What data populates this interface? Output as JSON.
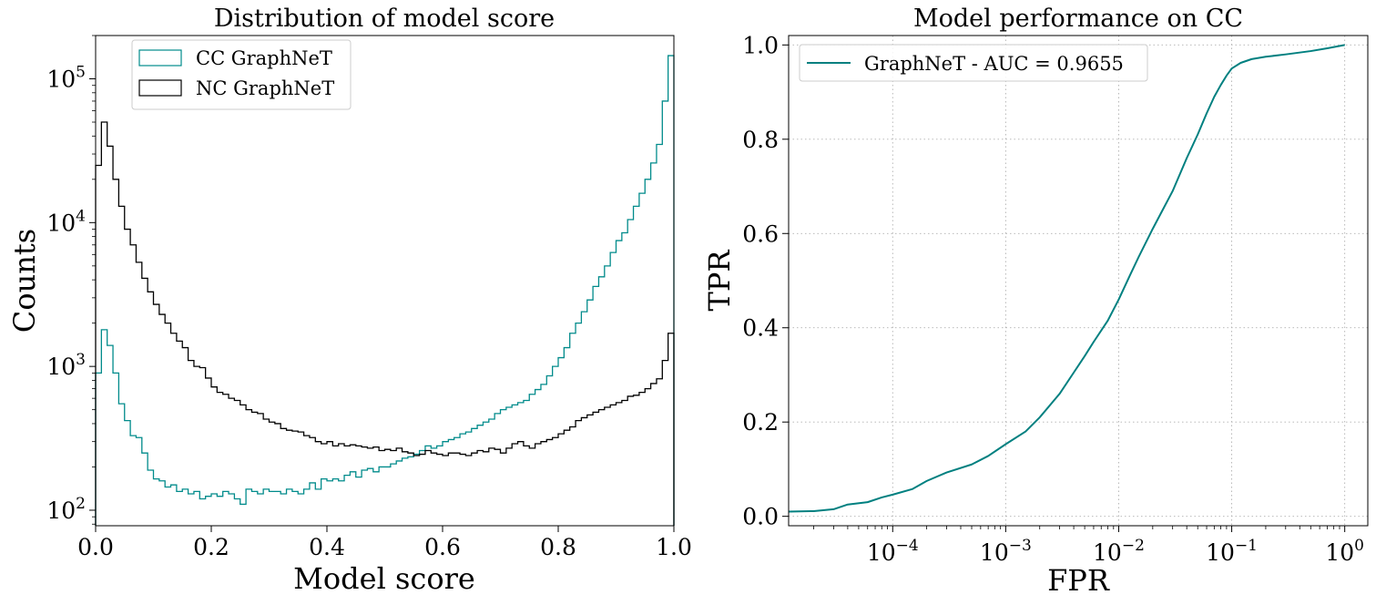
{
  "chart_data": [
    {
      "type": "histogram",
      "title": "Distribution of model score",
      "xlabel": "Model score",
      "ylabel": "Counts",
      "xlim": [
        0.0,
        1.0
      ],
      "ylim": [
        78,
        200000
      ],
      "yscale": "log",
      "grid": false,
      "legend_location": "upper-left",
      "x_ticks": [
        0.0,
        0.2,
        0.4,
        0.6,
        0.8,
        1.0
      ],
      "x_tick_labels": [
        "0.0",
        "0.2",
        "0.4",
        "0.6",
        "0.8",
        "1.0"
      ],
      "y_ticks": [
        {
          "value": 100,
          "base": "10",
          "exp": "2"
        },
        {
          "value": 1000,
          "base": "10",
          "exp": "3"
        },
        {
          "value": 10000,
          "base": "10",
          "exp": "4"
        },
        {
          "value": 100000,
          "base": "10",
          "exp": "5"
        }
      ],
      "bins": 100,
      "series": [
        {
          "name": "CC GraphNeT",
          "color": "#008b8b",
          "values": [
            900,
            1800,
            1400,
            900,
            550,
            420,
            330,
            320,
            250,
            190,
            165,
            160,
            145,
            150,
            135,
            140,
            130,
            135,
            120,
            125,
            130,
            125,
            135,
            130,
            120,
            110,
            140,
            135,
            130,
            140,
            135,
            135,
            130,
            140,
            135,
            130,
            140,
            155,
            140,
            165,
            160,
            165,
            160,
            175,
            185,
            170,
            190,
            195,
            185,
            200,
            200,
            210,
            220,
            230,
            235,
            245,
            260,
            280,
            270,
            280,
            300,
            310,
            320,
            340,
            350,
            370,
            390,
            410,
            430,
            470,
            500,
            520,
            540,
            560,
            580,
            640,
            690,
            750,
            860,
            1000,
            1150,
            1350,
            1700,
            2000,
            2400,
            2900,
            3600,
            4200,
            5000,
            6200,
            7500,
            8500,
            10500,
            13000,
            16000,
            20000,
            26000,
            35000,
            70000,
            145000
          ]
        },
        {
          "name": "NC GraphNeT",
          "color": "#000000",
          "values": [
            25000,
            50000,
            34000,
            20000,
            13000,
            9000,
            7000,
            5300,
            4100,
            3300,
            2700,
            2300,
            2000,
            1700,
            1500,
            1350,
            1100,
            1000,
            980,
            830,
            720,
            660,
            640,
            600,
            580,
            540,
            500,
            480,
            470,
            430,
            410,
            400,
            370,
            360,
            355,
            350,
            330,
            320,
            300,
            290,
            300,
            280,
            290,
            280,
            285,
            280,
            275,
            270,
            275,
            260,
            265,
            260,
            270,
            255,
            250,
            240,
            245,
            260,
            250,
            245,
            240,
            250,
            250,
            245,
            240,
            250,
            260,
            255,
            270,
            265,
            250,
            270,
            290,
            300,
            280,
            270,
            290,
            300,
            310,
            320,
            340,
            360,
            380,
            420,
            440,
            460,
            480,
            500,
            520,
            540,
            560,
            580,
            620,
            630,
            660,
            700,
            760,
            820,
            1100,
            1700
          ]
        }
      ]
    },
    {
      "type": "line",
      "title": "Model performance on CC",
      "xlabel": "FPR",
      "ylabel": "TPR",
      "xscale": "log",
      "xlim": [
        1.2e-05,
        1.6
      ],
      "ylim": [
        -0.02,
        1.02
      ],
      "grid": true,
      "legend_location": "upper-left",
      "x_ticks": [
        {
          "value": 0.0001,
          "base": "10",
          "exp": "−4"
        },
        {
          "value": 0.001,
          "base": "10",
          "exp": "−3"
        },
        {
          "value": 0.01,
          "base": "10",
          "exp": "−2"
        },
        {
          "value": 0.1,
          "base": "10",
          "exp": "−1"
        },
        {
          "value": 1,
          "base": "10",
          "exp": "0"
        }
      ],
      "y_ticks": [
        0.0,
        0.2,
        0.4,
        0.6,
        0.8,
        1.0
      ],
      "y_tick_labels": [
        "0.0",
        "0.2",
        "0.4",
        "0.6",
        "0.8",
        "1.0"
      ],
      "series": [
        {
          "name": "GraphNeT - AUC = 0.9655",
          "color": "#008080",
          "x": [
            1.2e-05,
            2e-05,
            3e-05,
            4e-05,
            6e-05,
            8e-05,
            0.0001,
            0.00015,
            0.0002,
            0.0003,
            0.0005,
            0.0007,
            0.001,
            0.0015,
            0.002,
            0.003,
            0.004,
            0.005,
            0.006,
            0.008,
            0.01,
            0.0125,
            0.015,
            0.02,
            0.03,
            0.04,
            0.05,
            0.06,
            0.07,
            0.08,
            0.09,
            0.1,
            0.12,
            0.15,
            0.2,
            0.3,
            0.5,
            0.7,
            1.0
          ],
          "y": [
            0.01,
            0.011,
            0.015,
            0.025,
            0.03,
            0.04,
            0.046,
            0.058,
            0.075,
            0.093,
            0.11,
            0.128,
            0.153,
            0.18,
            0.21,
            0.26,
            0.305,
            0.34,
            0.37,
            0.415,
            0.46,
            0.51,
            0.55,
            0.61,
            0.69,
            0.76,
            0.81,
            0.855,
            0.89,
            0.915,
            0.935,
            0.95,
            0.962,
            0.97,
            0.975,
            0.98,
            0.987,
            0.993,
            1.0
          ]
        }
      ]
    }
  ]
}
